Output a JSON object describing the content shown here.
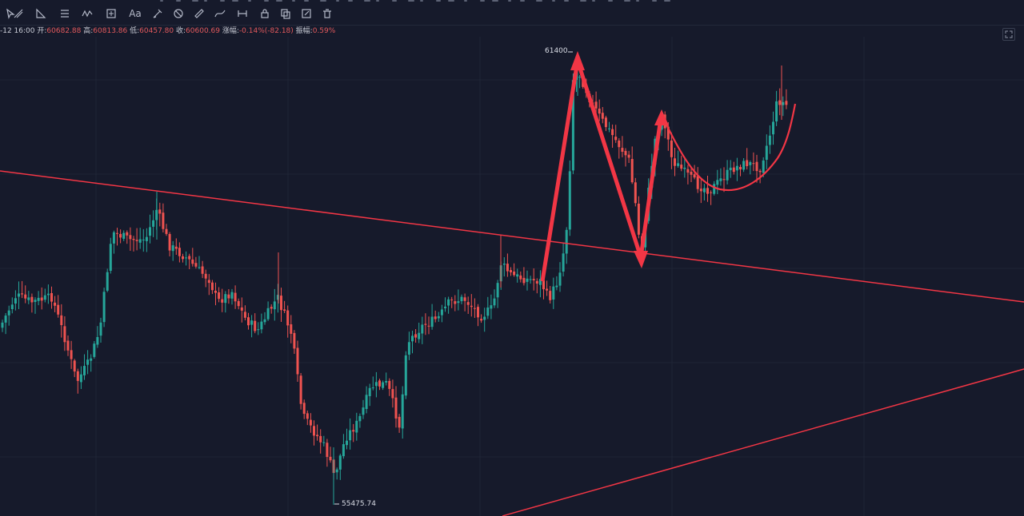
{
  "colors": {
    "background": "#161a2b",
    "grid": "#1f2436",
    "candle_up": "#26a69a",
    "candle_down": "#ef5350",
    "drawing": "#f23645"
  },
  "toolbar": {
    "icons": [
      {
        "name": "cursor-icon"
      },
      {
        "name": "trend-line-icon"
      },
      {
        "name": "fib-icon"
      },
      {
        "name": "horizontal-lines-icon"
      },
      {
        "name": "wave-pattern-icon"
      },
      {
        "name": "range-icon"
      },
      {
        "name": "text-icon",
        "text": "Aa"
      },
      {
        "name": "brush-icon"
      },
      {
        "name": "eraser-icon"
      },
      {
        "name": "ruler-icon"
      },
      {
        "name": "path-icon"
      },
      {
        "name": "measure-icon"
      },
      {
        "name": "lock-icon"
      },
      {
        "name": "copy-icon"
      },
      {
        "name": "edit-icon"
      },
      {
        "name": "trash-icon"
      }
    ]
  },
  "ohlc": {
    "time": "-12 16:00",
    "open_label": "开:",
    "open": "60682.88",
    "high_label": "高:",
    "high": "60813.86",
    "low_label": "低:",
    "low": "60457.80",
    "close_label": "收:",
    "close": "60600.69",
    "change_label": "涨幅:",
    "change": "-0.14%(-82.18)",
    "amplitude_label": "振幅:",
    "amplitude": "0.59%"
  },
  "annotations": {
    "high_label": "61400",
    "low_label": "55475.74"
  },
  "chart_data": {
    "type": "candlestick",
    "price_range": [
      55300,
      61700
    ],
    "marked_high": 61400,
    "marked_low": 55475.74,
    "up_color": "#26a69a",
    "down_color": "#ef5350"
  }
}
